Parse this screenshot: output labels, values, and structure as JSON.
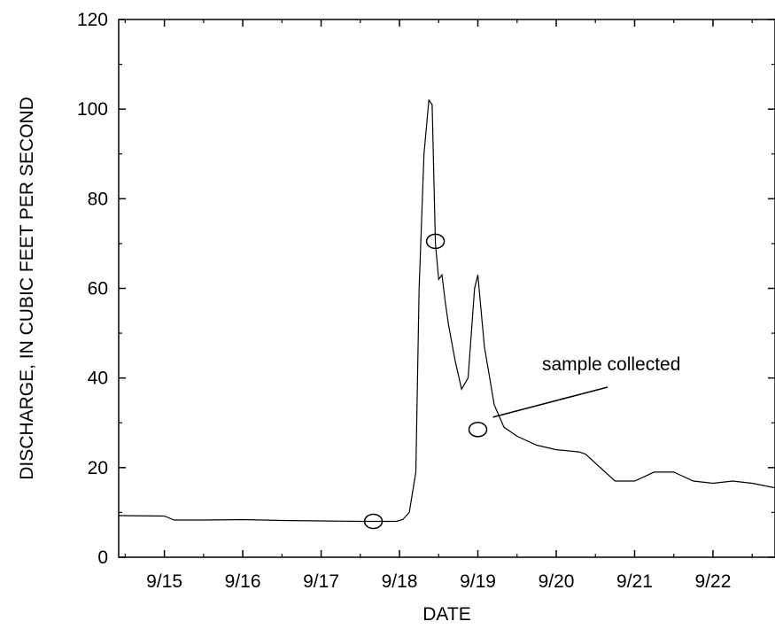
{
  "chart_data": {
    "type": "line",
    "title": "",
    "xlabel": "DATE",
    "ylabel": "DISCHARGE, IN CUBIC FEET PER SECOND",
    "xlim": [
      "2000-09-14T10:00",
      "2000-09-22T19:00"
    ],
    "ylim": [
      0,
      120
    ],
    "x_tick_labels": [
      "9/15",
      "9/16",
      "9/17",
      "9/18",
      "9/19",
      "9/20",
      "9/21",
      "9/22"
    ],
    "x_ticks": [
      "2000-09-15",
      "2000-09-16",
      "2000-09-17",
      "2000-09-18",
      "2000-09-19",
      "2000-09-20",
      "2000-09-21",
      "2000-09-22"
    ],
    "y_ticks": [
      0,
      20,
      40,
      60,
      80,
      100,
      120
    ],
    "grid": false,
    "legend": "none",
    "colors": {
      "line": "#000000",
      "axes": "#000000",
      "background": "#ffffff"
    },
    "series": [
      {
        "x": [
          "2000-09-14T10:00",
          "2000-09-15T00:00",
          "2000-09-15T03:00",
          "2000-09-15T12:00",
          "2000-09-16T00:00",
          "2000-09-16T12:00",
          "2000-09-17T00:00",
          "2000-09-17T12:00",
          "2000-09-17T18:00",
          "2000-09-17T23:00",
          "2000-09-18T01:00",
          "2000-09-18T03:00",
          "2000-09-18T05:00",
          "2000-09-18T06:00",
          "2000-09-18T07:30",
          "2000-09-18T09:00",
          "2000-09-18T10:00",
          "2000-09-18T11:00",
          "2000-09-18T12:00",
          "2000-09-18T13:00",
          "2000-09-18T14:00",
          "2000-09-18T15:00",
          "2000-09-18T17:00",
          "2000-09-18T19:00",
          "2000-09-18T21:00",
          "2000-09-18T23:00",
          "2000-09-19T00:00",
          "2000-09-19T02:00",
          "2000-09-19T05:00",
          "2000-09-19T08:00",
          "2000-09-19T12:00",
          "2000-09-19T18:00",
          "2000-09-20T00:00",
          "2000-09-20T07:00",
          "2000-09-20T09:00",
          "2000-09-20T12:00",
          "2000-09-20T18:00",
          "2000-09-21T00:00",
          "2000-09-21T06:00",
          "2000-09-21T12:00",
          "2000-09-21T18:00",
          "2000-09-22T00:00",
          "2000-09-22T06:00",
          "2000-09-22T12:00",
          "2000-09-22T19:00"
        ],
        "y": [
          9.3,
          9.2,
          8.3,
          8.3,
          8.4,
          8.2,
          8.1,
          8.0,
          8.0,
          8.0,
          8.4,
          10.0,
          19.0,
          60.0,
          90.0,
          102.0,
          101.0,
          70.0,
          62.0,
          63.0,
          57.0,
          52.0,
          44.0,
          37.5,
          40.0,
          60.0,
          63.0,
          47.0,
          34.0,
          29.0,
          27.0,
          25.0,
          24.0,
          23.5,
          23.0,
          21.0,
          17.0,
          17.0,
          19.0,
          19.0,
          17.0,
          16.5,
          17.0,
          16.5,
          15.5
        ]
      }
    ],
    "sample_markers": {
      "x": [
        "2000-09-17T16:00",
        "2000-09-18T11:00",
        "2000-09-19T00:00"
      ],
      "y": [
        8.0,
        70.5,
        28.5
      ]
    },
    "annotations": [
      {
        "text": "sample collected"
      }
    ]
  }
}
